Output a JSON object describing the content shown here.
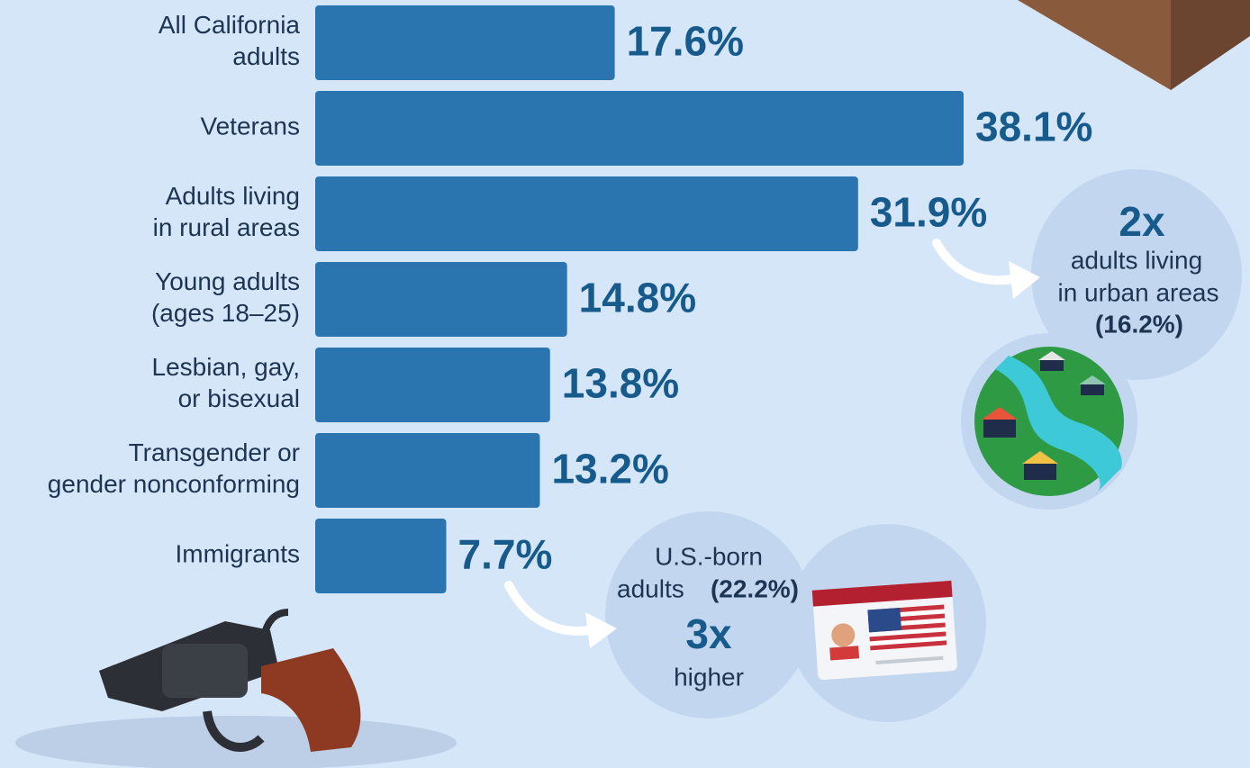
{
  "chart_data": {
    "type": "bar",
    "orientation": "horizontal",
    "categories": [
      [
        "All California",
        "adults"
      ],
      [
        "Veterans"
      ],
      [
        "Adults living",
        "in rural areas"
      ],
      [
        "Young adults",
        "(ages 18–25)"
      ],
      [
        "Lesbian, gay,",
        "or bisexual"
      ],
      [
        "Transgender or",
        "gender nonconforming"
      ],
      [
        "Immigrants"
      ]
    ],
    "values": [
      17.6,
      38.1,
      31.9,
      14.8,
      13.8,
      13.2,
      7.7
    ],
    "value_labels": [
      "17.6%",
      "38.1%",
      "31.9%",
      "14.8%",
      "13.8%",
      "13.2%",
      "7.7%"
    ],
    "color": "#2a74b0",
    "annotations": [
      {
        "headline": "2x",
        "lines": [
          "adults living",
          "in urban areas"
        ],
        "value_label": "(16.2%)"
      },
      {
        "lines": [
          "U.S.-born",
          "adults"
        ],
        "value_label": "(22.2%)",
        "headline": "3x",
        "after": "higher"
      }
    ]
  }
}
